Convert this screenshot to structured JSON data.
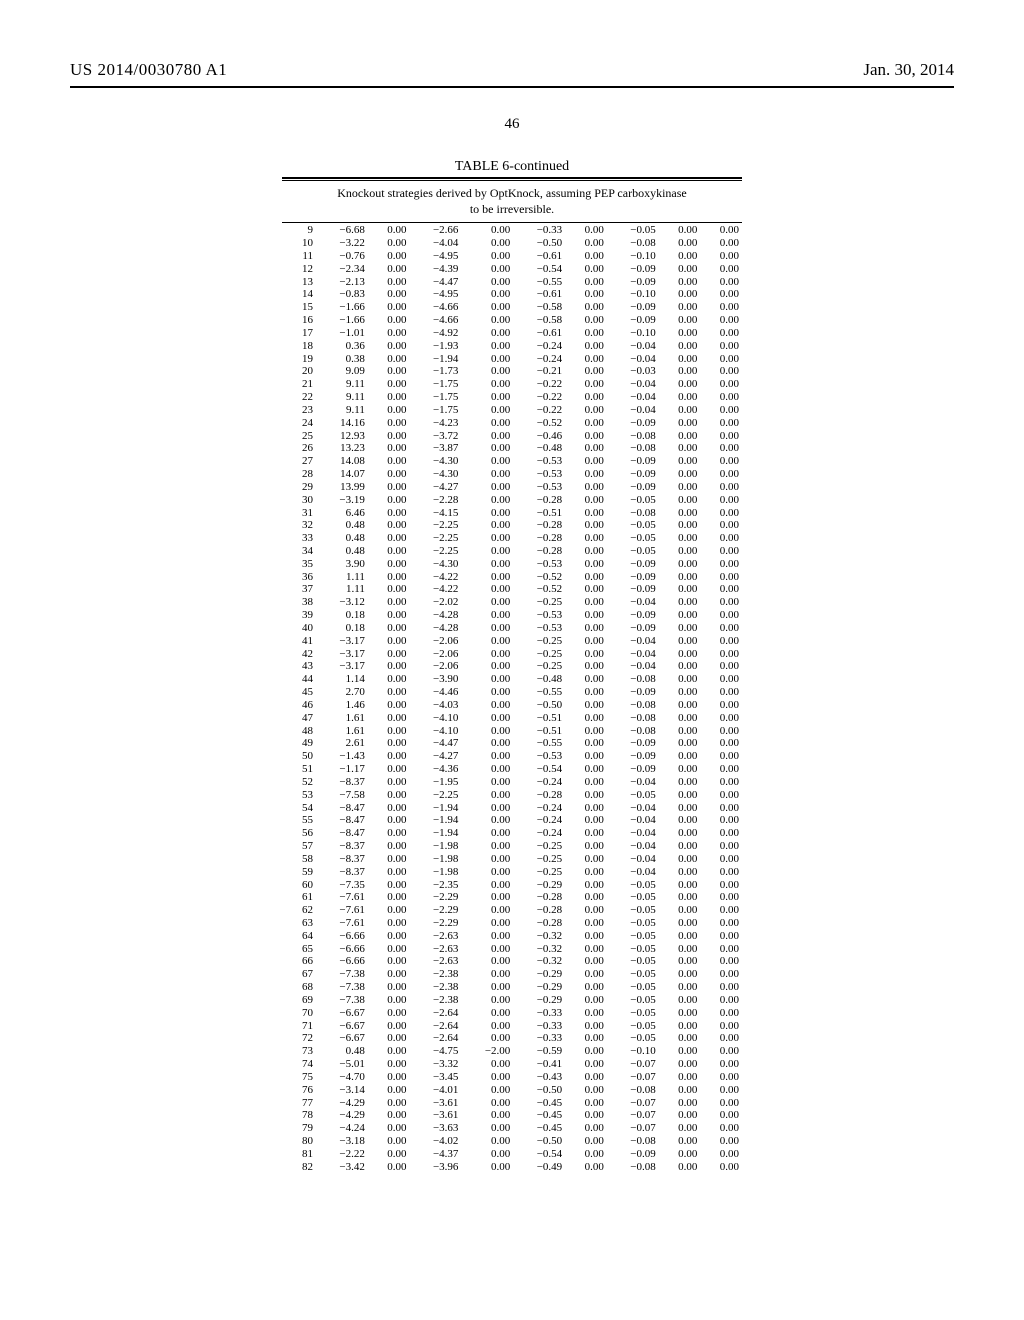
{
  "header": {
    "pubnum": "US 2014/0030780 A1",
    "date": "Jan. 30, 2014"
  },
  "pagenum": "46",
  "table": {
    "title": "TABLE 6-continued",
    "caption_line1": "Knockout strategies derived by OptKnock, assuming PEP carboxykinase",
    "caption_line2": "to be irreversible.",
    "rows": [
      [
        "9",
        "-6.68",
        "0.00",
        "-2.66",
        "0.00",
        "-0.33",
        "0.00",
        "-0.05",
        "0.00",
        "0.00"
      ],
      [
        "10",
        "-3.22",
        "0.00",
        "-4.04",
        "0.00",
        "-0.50",
        "0.00",
        "-0.08",
        "0.00",
        "0.00"
      ],
      [
        "11",
        "-0.76",
        "0.00",
        "-4.95",
        "0.00",
        "-0.61",
        "0.00",
        "-0.10",
        "0.00",
        "0.00"
      ],
      [
        "12",
        "-2.34",
        "0.00",
        "-4.39",
        "0.00",
        "-0.54",
        "0.00",
        "-0.09",
        "0.00",
        "0.00"
      ],
      [
        "13",
        "-2.13",
        "0.00",
        "-4.47",
        "0.00",
        "-0.55",
        "0.00",
        "-0.09",
        "0.00",
        "0.00"
      ],
      [
        "14",
        "-0.83",
        "0.00",
        "-4.95",
        "0.00",
        "-0.61",
        "0.00",
        "-0.10",
        "0.00",
        "0.00"
      ],
      [
        "15",
        "-1.66",
        "0.00",
        "-4.66",
        "0.00",
        "-0.58",
        "0.00",
        "-0.09",
        "0.00",
        "0.00"
      ],
      [
        "16",
        "-1.66",
        "0.00",
        "-4.66",
        "0.00",
        "-0.58",
        "0.00",
        "-0.09",
        "0.00",
        "0.00"
      ],
      [
        "17",
        "-1.01",
        "0.00",
        "-4.92",
        "0.00",
        "-0.61",
        "0.00",
        "-0.10",
        "0.00",
        "0.00"
      ],
      [
        "18",
        "0.36",
        "0.00",
        "-1.93",
        "0.00",
        "-0.24",
        "0.00",
        "-0.04",
        "0.00",
        "0.00"
      ],
      [
        "19",
        "0.38",
        "0.00",
        "-1.94",
        "0.00",
        "-0.24",
        "0.00",
        "-0.04",
        "0.00",
        "0.00"
      ],
      [
        "20",
        "9.09",
        "0.00",
        "-1.73",
        "0.00",
        "-0.21",
        "0.00",
        "-0.03",
        "0.00",
        "0.00"
      ],
      [
        "21",
        "9.11",
        "0.00",
        "-1.75",
        "0.00",
        "-0.22",
        "0.00",
        "-0.04",
        "0.00",
        "0.00"
      ],
      [
        "22",
        "9.11",
        "0.00",
        "-1.75",
        "0.00",
        "-0.22",
        "0.00",
        "-0.04",
        "0.00",
        "0.00"
      ],
      [
        "23",
        "9.11",
        "0.00",
        "-1.75",
        "0.00",
        "-0.22",
        "0.00",
        "-0.04",
        "0.00",
        "0.00"
      ],
      [
        "24",
        "14.16",
        "0.00",
        "-4.23",
        "0.00",
        "-0.52",
        "0.00",
        "-0.09",
        "0.00",
        "0.00"
      ],
      [
        "25",
        "12.93",
        "0.00",
        "-3.72",
        "0.00",
        "-0.46",
        "0.00",
        "-0.08",
        "0.00",
        "0.00"
      ],
      [
        "26",
        "13.23",
        "0.00",
        "-3.87",
        "0.00",
        "-0.48",
        "0.00",
        "-0.08",
        "0.00",
        "0.00"
      ],
      [
        "27",
        "14.08",
        "0.00",
        "-4.30",
        "0.00",
        "-0.53",
        "0.00",
        "-0.09",
        "0.00",
        "0.00"
      ],
      [
        "28",
        "14.07",
        "0.00",
        "-4.30",
        "0.00",
        "-0.53",
        "0.00",
        "-0.09",
        "0.00",
        "0.00"
      ],
      [
        "29",
        "13.99",
        "0.00",
        "-4.27",
        "0.00",
        "-0.53",
        "0.00",
        "-0.09",
        "0.00",
        "0.00"
      ],
      [
        "30",
        "-3.19",
        "0.00",
        "-2.28",
        "0.00",
        "-0.28",
        "0.00",
        "-0.05",
        "0.00",
        "0.00"
      ],
      [
        "31",
        "6.46",
        "0.00",
        "-4.15",
        "0.00",
        "-0.51",
        "0.00",
        "-0.08",
        "0.00",
        "0.00"
      ],
      [
        "32",
        "0.48",
        "0.00",
        "-2.25",
        "0.00",
        "-0.28",
        "0.00",
        "-0.05",
        "0.00",
        "0.00"
      ],
      [
        "33",
        "0.48",
        "0.00",
        "-2.25",
        "0.00",
        "-0.28",
        "0.00",
        "-0.05",
        "0.00",
        "0.00"
      ],
      [
        "34",
        "0.48",
        "0.00",
        "-2.25",
        "0.00",
        "-0.28",
        "0.00",
        "-0.05",
        "0.00",
        "0.00"
      ],
      [
        "35",
        "3.90",
        "0.00",
        "-4.30",
        "0.00",
        "-0.53",
        "0.00",
        "-0.09",
        "0.00",
        "0.00"
      ],
      [
        "36",
        "1.11",
        "0.00",
        "-4.22",
        "0.00",
        "-0.52",
        "0.00",
        "-0.09",
        "0.00",
        "0.00"
      ],
      [
        "37",
        "1.11",
        "0.00",
        "-4.22",
        "0.00",
        "-0.52",
        "0.00",
        "-0.09",
        "0.00",
        "0.00"
      ],
      [
        "38",
        "-3.12",
        "0.00",
        "-2.02",
        "0.00",
        "-0.25",
        "0.00",
        "-0.04",
        "0.00",
        "0.00"
      ],
      [
        "39",
        "0.18",
        "0.00",
        "-4.28",
        "0.00",
        "-0.53",
        "0.00",
        "-0.09",
        "0.00",
        "0.00"
      ],
      [
        "40",
        "0.18",
        "0.00",
        "-4.28",
        "0.00",
        "-0.53",
        "0.00",
        "-0.09",
        "0.00",
        "0.00"
      ],
      [
        "41",
        "-3.17",
        "0.00",
        "-2.06",
        "0.00",
        "-0.25",
        "0.00",
        "-0.04",
        "0.00",
        "0.00"
      ],
      [
        "42",
        "-3.17",
        "0.00",
        "-2.06",
        "0.00",
        "-0.25",
        "0.00",
        "-0.04",
        "0.00",
        "0.00"
      ],
      [
        "43",
        "-3.17",
        "0.00",
        "-2.06",
        "0.00",
        "-0.25",
        "0.00",
        "-0.04",
        "0.00",
        "0.00"
      ],
      [
        "44",
        "1.14",
        "0.00",
        "-3.90",
        "0.00",
        "-0.48",
        "0.00",
        "-0.08",
        "0.00",
        "0.00"
      ],
      [
        "45",
        "2.70",
        "0.00",
        "-4.46",
        "0.00",
        "-0.55",
        "0.00",
        "-0.09",
        "0.00",
        "0.00"
      ],
      [
        "46",
        "1.46",
        "0.00",
        "-4.03",
        "0.00",
        "-0.50",
        "0.00",
        "-0.08",
        "0.00",
        "0.00"
      ],
      [
        "47",
        "1.61",
        "0.00",
        "-4.10",
        "0.00",
        "-0.51",
        "0.00",
        "-0.08",
        "0.00",
        "0.00"
      ],
      [
        "48",
        "1.61",
        "0.00",
        "-4.10",
        "0.00",
        "-0.51",
        "0.00",
        "-0.08",
        "0.00",
        "0.00"
      ],
      [
        "49",
        "2.61",
        "0.00",
        "-4.47",
        "0.00",
        "-0.55",
        "0.00",
        "-0.09",
        "0.00",
        "0.00"
      ],
      [
        "50",
        "-1.43",
        "0.00",
        "-4.27",
        "0.00",
        "-0.53",
        "0.00",
        "-0.09",
        "0.00",
        "0.00"
      ],
      [
        "51",
        "-1.17",
        "0.00",
        "-4.36",
        "0.00",
        "-0.54",
        "0.00",
        "-0.09",
        "0.00",
        "0.00"
      ],
      [
        "52",
        "-8.37",
        "0.00",
        "-1.95",
        "0.00",
        "-0.24",
        "0.00",
        "-0.04",
        "0.00",
        "0.00"
      ],
      [
        "53",
        "-7.58",
        "0.00",
        "-2.25",
        "0.00",
        "-0.28",
        "0.00",
        "-0.05",
        "0.00",
        "0.00"
      ],
      [
        "54",
        "-8.47",
        "0.00",
        "-1.94",
        "0.00",
        "-0.24",
        "0.00",
        "-0.04",
        "0.00",
        "0.00"
      ],
      [
        "55",
        "-8.47",
        "0.00",
        "-1.94",
        "0.00",
        "-0.24",
        "0.00",
        "-0.04",
        "0.00",
        "0.00"
      ],
      [
        "56",
        "-8.47",
        "0.00",
        "-1.94",
        "0.00",
        "-0.24",
        "0.00",
        "-0.04",
        "0.00",
        "0.00"
      ],
      [
        "57",
        "-8.37",
        "0.00",
        "-1.98",
        "0.00",
        "-0.25",
        "0.00",
        "-0.04",
        "0.00",
        "0.00"
      ],
      [
        "58",
        "-8.37",
        "0.00",
        "-1.98",
        "0.00",
        "-0.25",
        "0.00",
        "-0.04",
        "0.00",
        "0.00"
      ],
      [
        "59",
        "-8.37",
        "0.00",
        "-1.98",
        "0.00",
        "-0.25",
        "0.00",
        "-0.04",
        "0.00",
        "0.00"
      ],
      [
        "60",
        "-7.35",
        "0.00",
        "-2.35",
        "0.00",
        "-0.29",
        "0.00",
        "-0.05",
        "0.00",
        "0.00"
      ],
      [
        "61",
        "-7.61",
        "0.00",
        "-2.29",
        "0.00",
        "-0.28",
        "0.00",
        "-0.05",
        "0.00",
        "0.00"
      ],
      [
        "62",
        "-7.61",
        "0.00",
        "-2.29",
        "0.00",
        "-0.28",
        "0.00",
        "-0.05",
        "0.00",
        "0.00"
      ],
      [
        "63",
        "-7.61",
        "0.00",
        "-2.29",
        "0.00",
        "-0.28",
        "0.00",
        "-0.05",
        "0.00",
        "0.00"
      ],
      [
        "64",
        "-6.66",
        "0.00",
        "-2.63",
        "0.00",
        "-0.32",
        "0.00",
        "-0.05",
        "0.00",
        "0.00"
      ],
      [
        "65",
        "-6.66",
        "0.00",
        "-2.63",
        "0.00",
        "-0.32",
        "0.00",
        "-0.05",
        "0.00",
        "0.00"
      ],
      [
        "66",
        "-6.66",
        "0.00",
        "-2.63",
        "0.00",
        "-0.32",
        "0.00",
        "-0.05",
        "0.00",
        "0.00"
      ],
      [
        "67",
        "-7.38",
        "0.00",
        "-2.38",
        "0.00",
        "-0.29",
        "0.00",
        "-0.05",
        "0.00",
        "0.00"
      ],
      [
        "68",
        "-7.38",
        "0.00",
        "-2.38",
        "0.00",
        "-0.29",
        "0.00",
        "-0.05",
        "0.00",
        "0.00"
      ],
      [
        "69",
        "-7.38",
        "0.00",
        "-2.38",
        "0.00",
        "-0.29",
        "0.00",
        "-0.05",
        "0.00",
        "0.00"
      ],
      [
        "70",
        "-6.67",
        "0.00",
        "-2.64",
        "0.00",
        "-0.33",
        "0.00",
        "-0.05",
        "0.00",
        "0.00"
      ],
      [
        "71",
        "-6.67",
        "0.00",
        "-2.64",
        "0.00",
        "-0.33",
        "0.00",
        "-0.05",
        "0.00",
        "0.00"
      ],
      [
        "72",
        "-6.67",
        "0.00",
        "-2.64",
        "0.00",
        "-0.33",
        "0.00",
        "-0.05",
        "0.00",
        "0.00"
      ],
      [
        "73",
        "0.48",
        "0.00",
        "-4.75",
        "-2.00",
        "-0.59",
        "0.00",
        "-0.10",
        "0.00",
        "0.00"
      ],
      [
        "74",
        "-5.01",
        "0.00",
        "-3.32",
        "0.00",
        "-0.41",
        "0.00",
        "-0.07",
        "0.00",
        "0.00"
      ],
      [
        "75",
        "-4.70",
        "0.00",
        "-3.45",
        "0.00",
        "-0.43",
        "0.00",
        "-0.07",
        "0.00",
        "0.00"
      ],
      [
        "76",
        "-3.14",
        "0.00",
        "-4.01",
        "0.00",
        "-0.50",
        "0.00",
        "-0.08",
        "0.00",
        "0.00"
      ],
      [
        "77",
        "-4.29",
        "0.00",
        "-3.61",
        "0.00",
        "-0.45",
        "0.00",
        "-0.07",
        "0.00",
        "0.00"
      ],
      [
        "78",
        "-4.29",
        "0.00",
        "-3.61",
        "0.00",
        "-0.45",
        "0.00",
        "-0.07",
        "0.00",
        "0.00"
      ],
      [
        "79",
        "-4.24",
        "0.00",
        "-3.63",
        "0.00",
        "-0.45",
        "0.00",
        "-0.07",
        "0.00",
        "0.00"
      ],
      [
        "80",
        "-3.18",
        "0.00",
        "-4.02",
        "0.00",
        "-0.50",
        "0.00",
        "-0.08",
        "0.00",
        "0.00"
      ],
      [
        "81",
        "-2.22",
        "0.00",
        "-4.37",
        "0.00",
        "-0.54",
        "0.00",
        "-0.09",
        "0.00",
        "0.00"
      ],
      [
        "82",
        "-3.42",
        "0.00",
        "-3.96",
        "0.00",
        "-0.49",
        "0.00",
        "-0.08",
        "0.00",
        "0.00"
      ]
    ]
  }
}
